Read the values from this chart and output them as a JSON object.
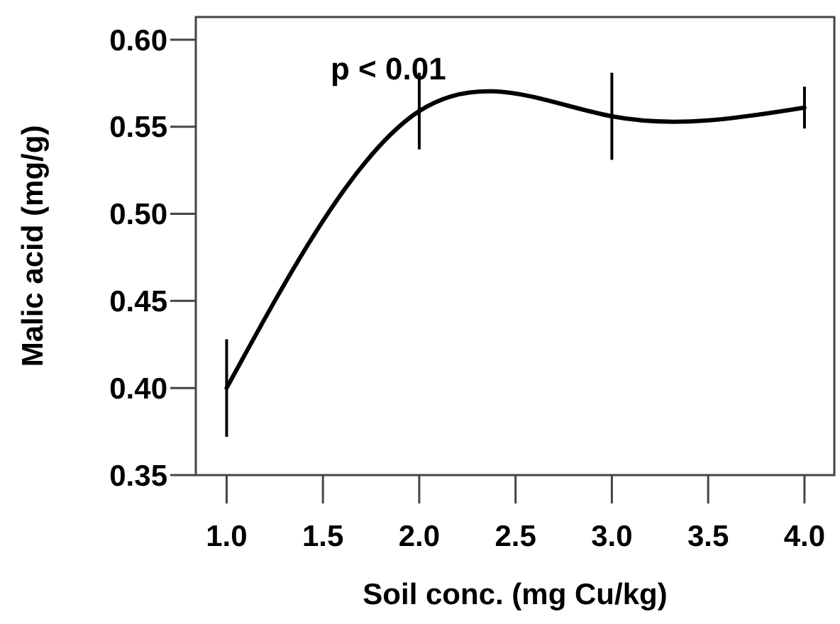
{
  "chart_data": {
    "type": "line",
    "xlabel": "Soil conc. (mg Cu/kg)",
    "ylabel": "Malic acid (mg/g)",
    "annotations": [
      "p < 0.01"
    ],
    "x": [
      1,
      2,
      3,
      4
    ],
    "series": [
      {
        "color": "#000000",
        "values": [
          0.4,
          0.559,
          0.556,
          0.561
        ],
        "errors": [
          0.028,
          0.022,
          0.025,
          0.012
        ]
      }
    ],
    "xlim": [
      0.84,
      4.155
    ],
    "xticks": [
      {
        "value": 1,
        "label": "1.0"
      },
      1.5,
      {
        "value": 2,
        "label": "2.0"
      },
      2.5,
      {
        "value": 3,
        "label": "3.0"
      },
      3.5,
      {
        "value": 4,
        "label": "4.0"
      }
    ],
    "ylim": [
      0.35,
      0.613
    ],
    "yticks": [
      {
        "value": 0.35,
        "label": "0.35"
      },
      {
        "value": 0.4,
        "label": "0.40"
      },
      {
        "value": 0.45,
        "label": "0.45"
      },
      {
        "value": 0.5,
        "label": "0.50"
      },
      {
        "value": 0.55,
        "label": "0.55"
      },
      {
        "value": 0.6,
        "label": "0.60"
      }
    ],
    "grid": false,
    "marker": "none",
    "line_style": "solid"
  }
}
